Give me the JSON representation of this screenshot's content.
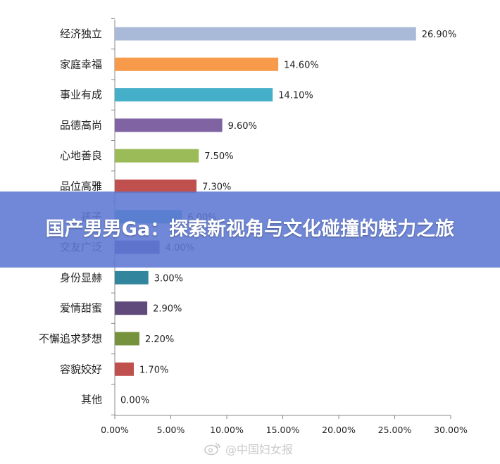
{
  "banner": {
    "title": "国产男男Ga：探索新视角与文化碰撞的魅力之旅"
  },
  "watermark": {
    "text": "@中国妇女报",
    "icon": "weibo-icon"
  },
  "chart_data": {
    "type": "bar",
    "orientation": "horizontal",
    "categories": [
      "经济独立",
      "家庭幸福",
      "事业有成",
      "品德高尚",
      "心地善良",
      "品位高雅",
      "孩子",
      "交友广泛",
      "身份显赫",
      "爱情甜蜜",
      "不懈追求梦想",
      "容貌姣好",
      "其他"
    ],
    "values": [
      26.9,
      14.6,
      14.1,
      9.6,
      7.5,
      7.3,
      6.0,
      4.0,
      3.0,
      2.9,
      2.2,
      1.7,
      0.0
    ],
    "data_labels": [
      "26.90%",
      "14.60%",
      "14.10%",
      "9.60%",
      "7.50%",
      "7.30%",
      "6.00%",
      "4.00%",
      "3.00%",
      "2.90%",
      "2.20%",
      "1.70%",
      "0.00%"
    ],
    "colors": [
      "#a9b9d8",
      "#f79a4a",
      "#45afc9",
      "#7f63a3",
      "#9bbb59",
      "#c0504d",
      "#4bacc6",
      "#6a5aa0",
      "#31859c",
      "#604a7b",
      "#76923c",
      "#c0504d",
      "#4f81bd"
    ],
    "xlim": [
      0,
      30
    ],
    "x_ticks": [
      "0.00%",
      "5.00%",
      "10.00%",
      "15.00%",
      "20.00%",
      "25.00%",
      "30.00%"
    ],
    "grid": false,
    "title": "",
    "xlabel": "",
    "ylabel": ""
  }
}
